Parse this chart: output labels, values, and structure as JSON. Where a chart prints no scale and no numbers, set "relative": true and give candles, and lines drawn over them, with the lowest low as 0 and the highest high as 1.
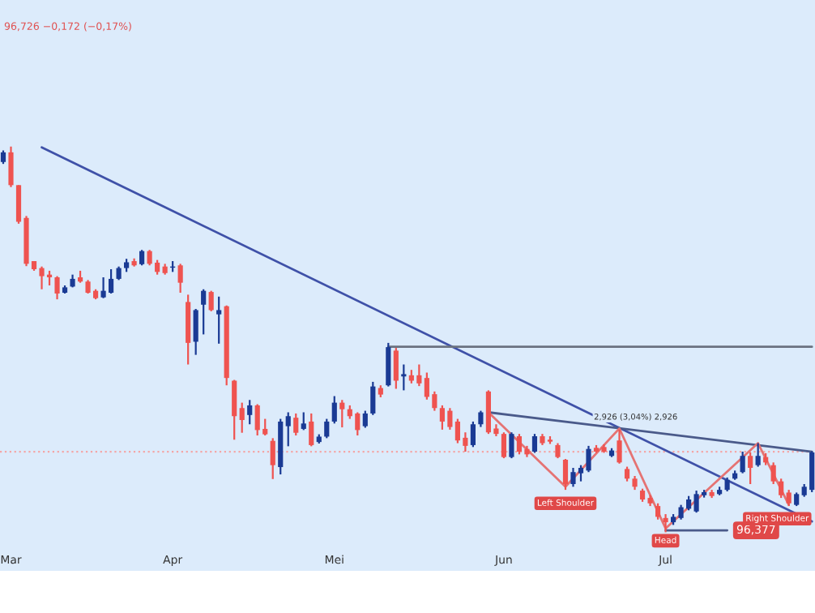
{
  "chart_data": {
    "type": "candlestick",
    "relative": true,
    "categories": [
      null,
      "Mar",
      null,
      null,
      null,
      null,
      null,
      null,
      null,
      null,
      null,
      null,
      null,
      null,
      null,
      null,
      null,
      null,
      null,
      null,
      null,
      null,
      "Apr",
      null,
      null,
      null,
      null,
      null,
      null,
      null,
      null,
      null,
      null,
      null,
      null,
      null,
      null,
      null,
      null,
      null,
      null,
      null,
      null,
      "Mei",
      null,
      null,
      null,
      null,
      null,
      null,
      null,
      null,
      null,
      null,
      null,
      null,
      null,
      null,
      null,
      null,
      null,
      null,
      null,
      null,
      null,
      "Jun",
      null,
      null,
      null,
      null,
      null,
      null,
      null,
      null,
      null,
      null,
      null,
      null,
      null,
      null,
      null,
      null,
      null,
      null,
      null,
      null,
      "Jul",
      null,
      null,
      null,
      null,
      null,
      null,
      null,
      null,
      null,
      null,
      null,
      null,
      null,
      null,
      null,
      null,
      null,
      null,
      null
    ],
    "ohlc": [
      [
        0.96,
        0.99,
        0.955,
        0.985
      ],
      [
        0.985,
        1.0,
        0.895,
        0.9
      ],
      [
        0.9,
        0.9,
        0.8,
        0.805
      ],
      [
        0.815,
        0.82,
        0.69,
        0.696
      ],
      [
        0.703,
        0.703,
        0.678,
        0.682
      ],
      [
        0.685,
        0.689,
        0.63,
        0.664
      ],
      [
        0.668,
        0.678,
        0.64,
        0.661
      ],
      [
        0.661,
        0.664,
        0.604,
        0.619
      ],
      [
        0.621,
        0.64,
        0.619,
        0.635
      ],
      [
        0.637,
        0.668,
        0.635,
        0.657
      ],
      [
        0.661,
        0.678,
        0.647,
        0.65
      ],
      [
        0.65,
        0.654,
        0.619,
        0.621
      ],
      [
        0.626,
        0.63,
        0.604,
        0.607
      ],
      [
        0.609,
        0.661,
        0.607,
        0.626
      ],
      [
        0.621,
        0.682,
        0.619,
        0.657
      ],
      [
        0.657,
        0.689,
        0.654,
        0.685
      ],
      [
        0.685,
        0.709,
        0.675,
        0.7
      ],
      [
        0.703,
        0.71,
        0.689,
        0.692
      ],
      [
        0.695,
        0.732,
        0.692,
        0.729
      ],
      [
        0.729,
        0.732,
        0.692,
        0.696
      ],
      [
        0.699,
        0.706,
        0.668,
        0.675
      ],
      [
        0.689,
        0.696,
        0.668,
        0.672
      ],
      [
        0.686,
        0.703,
        0.675,
        0.689
      ],
      [
        0.692,
        0.696,
        0.621,
        0.647
      ],
      [
        0.597,
        0.616,
        0.435,
        0.491
      ],
      [
        0.494,
        0.579,
        0.46,
        0.576
      ],
      [
        0.59,
        0.63,
        0.513,
        0.626
      ],
      [
        0.623,
        0.626,
        0.573,
        0.576
      ],
      [
        0.565,
        0.611,
        0.489,
        0.576
      ],
      [
        0.586,
        0.588,
        0.381,
        0.4
      ],
      [
        0.393,
        0.395,
        0.24,
        0.301
      ],
      [
        0.322,
        0.336,
        0.258,
        0.291
      ],
      [
        0.304,
        0.343,
        0.28,
        0.329
      ],
      [
        0.329,
        0.332,
        0.251,
        0.265
      ],
      [
        0.268,
        0.294,
        0.251,
        0.254
      ],
      [
        0.237,
        0.244,
        0.138,
        0.174
      ],
      [
        0.169,
        0.294,
        0.15,
        0.287
      ],
      [
        0.275,
        0.311,
        0.223,
        0.301
      ],
      [
        0.297,
        0.308,
        0.251,
        0.258
      ],
      [
        0.268,
        0.311,
        0.265,
        0.282
      ],
      [
        0.287,
        0.308,
        0.223,
        0.226
      ],
      [
        0.234,
        0.254,
        0.23,
        0.248
      ],
      [
        0.248,
        0.294,
        0.244,
        0.287
      ],
      [
        0.287,
        0.353,
        0.282,
        0.336
      ],
      [
        0.336,
        0.343,
        0.272,
        0.319
      ],
      [
        0.319,
        0.329,
        0.294,
        0.301
      ],
      [
        0.308,
        0.311,
        0.251,
        0.265
      ],
      [
        0.275,
        0.315,
        0.271,
        0.308
      ],
      [
        0.308,
        0.39,
        0.304,
        0.378
      ],
      [
        0.374,
        0.381,
        0.35,
        0.357
      ],
      [
        0.381,
        0.491,
        0.378,
        0.48
      ],
      [
        0.471,
        0.478,
        0.372,
        0.393
      ],
      [
        0.404,
        0.435,
        0.368,
        0.41
      ],
      [
        0.407,
        0.421,
        0.386,
        0.393
      ],
      [
        0.407,
        0.435,
        0.379,
        0.386
      ],
      [
        0.4,
        0.414,
        0.344,
        0.351
      ],
      [
        0.358,
        0.365,
        0.315,
        0.322
      ],
      [
        0.322,
        0.329,
        0.266,
        0.287
      ],
      [
        0.315,
        0.322,
        0.266,
        0.273
      ],
      [
        0.287,
        0.294,
        0.231,
        0.238
      ],
      [
        0.245,
        0.259,
        0.209,
        0.224
      ],
      [
        0.226,
        0.287,
        0.221,
        0.28
      ],
      [
        0.28,
        0.315,
        0.273,
        0.311
      ],
      [
        0.365,
        0.368,
        0.255,
        0.259
      ],
      [
        0.269,
        0.28,
        0.249,
        0.255
      ],
      [
        0.255,
        0.259,
        0.192,
        0.195
      ],
      [
        0.195,
        0.259,
        0.192,
        0.255
      ],
      [
        0.249,
        0.255,
        0.202,
        0.209
      ],
      [
        0.216,
        0.224,
        0.195,
        0.202
      ],
      [
        0.209,
        0.255,
        0.206,
        0.249
      ],
      [
        0.249,
        0.255,
        0.226,
        0.231
      ],
      [
        0.24,
        0.249,
        0.229,
        0.235
      ],
      [
        0.226,
        0.231,
        0.192,
        0.195
      ],
      [
        0.188,
        0.19,
        0.11,
        0.125
      ],
      [
        0.125,
        0.167,
        0.118,
        0.156
      ],
      [
        0.153,
        0.174,
        0.132,
        0.167
      ],
      [
        0.16,
        0.224,
        0.156,
        0.216
      ],
      [
        0.219,
        0.226,
        0.206,
        0.209
      ],
      [
        0.221,
        0.228,
        0.206,
        0.209
      ],
      [
        0.198,
        0.218,
        0.195,
        0.212
      ],
      [
        0.238,
        0.266,
        0.178,
        0.181
      ],
      [
        0.164,
        0.17,
        0.132,
        0.139
      ],
      [
        0.139,
        0.146,
        0.11,
        0.118
      ],
      [
        0.108,
        0.113,
        0.079,
        0.085
      ],
      [
        0.089,
        0.096,
        0.068,
        0.075
      ],
      [
        0.068,
        0.075,
        0.033,
        0.04
      ],
      [
        0.037,
        0.047,
        0.0,
        0.026
      ],
      [
        0.026,
        0.047,
        0.019,
        0.04
      ],
      [
        0.037,
        0.071,
        0.033,
        0.065
      ],
      [
        0.061,
        0.094,
        0.057,
        0.085
      ],
      [
        0.054,
        0.108,
        0.051,
        0.099
      ],
      [
        0.096,
        0.11,
        0.09,
        0.104
      ],
      [
        0.104,
        0.11,
        0.089,
        0.094
      ],
      [
        0.099,
        0.118,
        0.096,
        0.11
      ],
      [
        0.11,
        0.142,
        0.106,
        0.136
      ],
      [
        0.139,
        0.16,
        0.136,
        0.153
      ],
      [
        0.156,
        0.209,
        0.153,
        0.198
      ],
      [
        0.198,
        0.207,
        0.125,
        0.167
      ],
      [
        0.174,
        0.231,
        0.17,
        0.198
      ],
      [
        0.195,
        0.205,
        0.174,
        0.181
      ],
      [
        0.174,
        0.181,
        0.125,
        0.132
      ],
      [
        0.132,
        0.139,
        0.089,
        0.096
      ],
      [
        0.103,
        0.11,
        0.068,
        0.075
      ],
      [
        0.071,
        0.103,
        0.068,
        0.099
      ],
      [
        0.096,
        0.125,
        0.092,
        0.118
      ],
      [
        0.11,
        0.21,
        0.104,
        0.207
      ]
    ],
    "colors": [
      "#1a3a94",
      "#ef5350",
      "#ef5350",
      "#ef5350",
      "#ef5350",
      "#ef5350",
      "#ef5350",
      "#ef5350",
      "#1a3a94",
      "#1a3a94",
      "#ef5350",
      "#ef5350",
      "#ef5350",
      "#1a3a94",
      "#1a3a94",
      "#1a3a94",
      "#1a3a94",
      "#ef5350",
      "#1a3a94",
      "#ef5350",
      "#ef5350",
      "#ef5350",
      "#1a3a94",
      "#ef5350",
      "#ef5350",
      "#1a3a94",
      "#1a3a94",
      "#ef5350",
      "#1a3a94",
      "#ef5350",
      "#ef5350",
      "#ef5350",
      "#1a3a94",
      "#ef5350",
      "#ef5350",
      "#ef5350",
      "#1a3a94",
      "#1a3a94",
      "#ef5350",
      "#1a3a94",
      "#ef5350",
      "#1a3a94",
      "#1a3a94",
      "#1a3a94",
      "#ef5350",
      "#ef5350",
      "#ef5350",
      "#1a3a94",
      "#1a3a94",
      "#ef5350",
      "#1a3a94",
      "#ef5350",
      "#1a3a94",
      "#ef5350",
      "#ef5350",
      "#ef5350",
      "#ef5350",
      "#ef5350",
      "#ef5350",
      "#ef5350",
      "#ef5350",
      "#1a3a94",
      "#1a3a94",
      "#ef5350",
      "#ef5350",
      "#ef5350",
      "#1a3a94",
      "#ef5350",
      "#ef5350",
      "#1a3a94",
      "#ef5350",
      "#ef5350",
      "#ef5350",
      "#ef5350",
      "#1a3a94",
      "#1a3a94",
      "#1a3a94",
      "#ef5350",
      "#ef5350",
      "#1a3a94",
      "#ef5350",
      "#ef5350",
      "#ef5350",
      "#ef5350",
      "#ef5350",
      "#ef5350",
      "#ef5350",
      "#1a3a94",
      "#1a3a94",
      "#1a3a94",
      "#1a3a94",
      "#1a3a94",
      "#ef5350",
      "#1a3a94",
      "#1a3a94",
      "#1a3a94",
      "#1a3a94",
      "#ef5350",
      "#1a3a94",
      "#ef5350",
      "#ef5350",
      "#ef5350",
      "#ef5350",
      "#1a3a94",
      "#1a3a94",
      "#1a3a94"
    ],
    "series": [
      {
        "type": "line",
        "color": "#3f51a8",
        "values": [
          null,
          null,
          null,
          null,
          null,
          0.998,
          null,
          null,
          null,
          null,
          null,
          null,
          null,
          null,
          null,
          null,
          null,
          null,
          null,
          null,
          null,
          null,
          null,
          null,
          null,
          null,
          null,
          null,
          null,
          null,
          null,
          null,
          null,
          null,
          null,
          null,
          null,
          null,
          null,
          null,
          null,
          null,
          null,
          null,
          null,
          null,
          null,
          null,
          null,
          null,
          null,
          null,
          null,
          null,
          null,
          null,
          null,
          null,
          null,
          null,
          null,
          null,
          null,
          null,
          null,
          null,
          null,
          null,
          null,
          null,
          null,
          null,
          null,
          null,
          null,
          null,
          null,
          null,
          null,
          null,
          null,
          null,
          null,
          null,
          null,
          null,
          null,
          null,
          null,
          null,
          null,
          null,
          null,
          null,
          null,
          null,
          null,
          null,
          null,
          null,
          null,
          null,
          null,
          null,
          null,
          0.028
        ]
      },
      {
        "type": "line",
        "color": "#4a5a8a",
        "values": [
          null,
          null,
          null,
          null,
          null,
          null,
          null,
          null,
          null,
          null,
          null,
          null,
          null,
          null,
          null,
          null,
          null,
          null,
          null,
          null,
          null,
          null,
          null,
          null,
          null,
          null,
          null,
          null,
          null,
          null,
          null,
          null,
          null,
          null,
          null,
          null,
          null,
          null,
          null,
          null,
          null,
          null,
          null,
          null,
          null,
          null,
          null,
          null,
          null,
          null,
          null,
          null,
          null,
          null,
          null,
          null,
          null,
          null,
          null,
          null,
          null,
          null,
          null,
          0.311,
          null,
          null,
          null,
          null,
          null,
          null,
          null,
          null,
          null,
          null,
          null,
          null,
          null,
          null,
          null,
          null,
          null,
          null,
          null,
          null,
          null,
          null,
          null,
          null,
          null,
          null,
          null,
          null,
          null,
          null,
          null,
          null,
          null,
          null,
          null,
          null,
          null,
          null,
          null,
          null,
          null,
          0.209
        ]
      },
      {
        "type": "line",
        "color": "#6b7280",
        "values": [
          null,
          null,
          null,
          null,
          null,
          null,
          null,
          null,
          null,
          null,
          null,
          null,
          null,
          null,
          null,
          null,
          null,
          null,
          null,
          null,
          null,
          null,
          null,
          null,
          null,
          null,
          null,
          null,
          null,
          null,
          null,
          null,
          null,
          null,
          null,
          null,
          null,
          null,
          null,
          null,
          null,
          null,
          null,
          null,
          null,
          null,
          null,
          null,
          null,
          null,
          0.481,
          null,
          null,
          null,
          null,
          null,
          null,
          null,
          null,
          null,
          null,
          null,
          null,
          null,
          null,
          null,
          null,
          null,
          null,
          null,
          null,
          null,
          null,
          null,
          null,
          null,
          null,
          null,
          null,
          null,
          null,
          null,
          null,
          null,
          null,
          null,
          null,
          null,
          null,
          null,
          null,
          null,
          null,
          null,
          null,
          null,
          null,
          null,
          null,
          null,
          null,
          null,
          null,
          null,
          null,
          0.481
        ]
      },
      {
        "type": "line",
        "color": "#e57373",
        "values": [
          null,
          null,
          null,
          null,
          null,
          null,
          null,
          null,
          null,
          null,
          null,
          null,
          null,
          null,
          null,
          null,
          null,
          null,
          null,
          null,
          null,
          null,
          null,
          null,
          null,
          null,
          null,
          null,
          null,
          null,
          null,
          null,
          null,
          null,
          null,
          null,
          null,
          null,
          null,
          null,
          null,
          null,
          null,
          null,
          null,
          null,
          null,
          null,
          null,
          null,
          null,
          null,
          null,
          null,
          null,
          null,
          null,
          null,
          null,
          null,
          null,
          null,
          null,
          0.311,
          null,
          null,
          null,
          null,
          null,
          null,
          null,
          null,
          null,
          0.118,
          null,
          null,
          null,
          null,
          null,
          null,
          0.269,
          null,
          null,
          null,
          null,
          null,
          0.01,
          null,
          null,
          null,
          null,
          null,
          null,
          null,
          null,
          null,
          null,
          null,
          0.231,
          null,
          null,
          null,
          0.071,
          null,
          null,
          null
        ]
      },
      {
        "type": "line",
        "color": "#4a5a8a",
        "values": [
          null,
          null,
          null,
          null,
          null,
          null,
          null,
          null,
          null,
          null,
          null,
          null,
          null,
          null,
          null,
          null,
          null,
          null,
          null,
          null,
          null,
          null,
          null,
          null,
          null,
          null,
          null,
          null,
          null,
          null,
          null,
          null,
          null,
          null,
          null,
          null,
          null,
          null,
          null,
          null,
          null,
          null,
          null,
          null,
          null,
          null,
          null,
          null,
          null,
          null,
          null,
          null,
          null,
          null,
          null,
          null,
          null,
          null,
          null,
          null,
          null,
          null,
          null,
          null,
          null,
          null,
          null,
          null,
          null,
          null,
          null,
          null,
          null,
          null,
          null,
          null,
          null,
          null,
          null,
          null,
          null,
          null,
          null,
          null,
          null,
          null,
          0.005,
          null,
          null,
          null,
          null,
          null,
          null,
          null,
          0.005,
          null,
          null,
          null,
          null,
          null,
          null,
          null,
          null,
          null,
          null,
          null
        ]
      }
    ],
    "ref_lines": [
      {
        "axis": "y",
        "value": 0.209,
        "color": "#f4a6a6",
        "line_style": "dotted"
      }
    ],
    "annotations": [
      "96,726 −0,172 (−0,17%)",
      "2,926 (3,04%) 2,926",
      "Left Shoulder",
      "Head",
      "96,377",
      "Right Shoulder"
    ]
  }
}
